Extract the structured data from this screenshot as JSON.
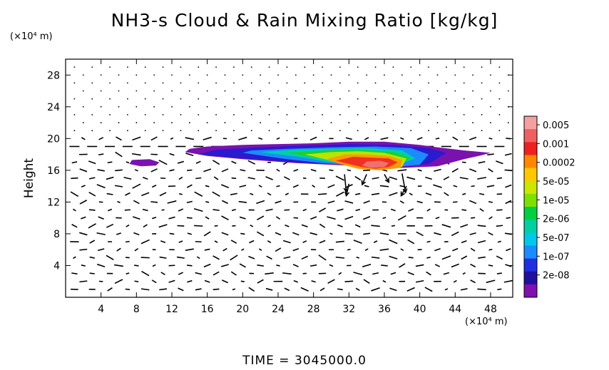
{
  "chart_data": {
    "type": "heatmap",
    "title": "NH3-s Cloud & Rain Mixing Ratio [kg/kg]",
    "ylabel": "Height",
    "xlabel": "",
    "x_unit_label": "(×10⁴ m)",
    "y_unit_label": "(×10⁴ m)",
    "xlim": [
      0,
      50.5
    ],
    "ylim": [
      0,
      30
    ],
    "x_ticks": [
      4,
      8,
      12,
      16,
      20,
      24,
      28,
      32,
      36,
      40,
      44,
      48
    ],
    "y_ticks": [
      4,
      8,
      12,
      16,
      20,
      24,
      28
    ],
    "colorbar": {
      "labels": [
        "0.005",
        "0.001",
        "0.0002",
        "5e-05",
        "1e-05",
        "2e-06",
        "5e-07",
        "1e-07",
        "2e-08"
      ],
      "colors": [
        "#f4a0a0",
        "#f06060",
        "#ee2020",
        "#ff8800",
        "#ffc800",
        "#cce600",
        "#7ee000",
        "#00d040",
        "#00d0a0",
        "#00c8e8",
        "#1a8cff",
        "#2030e0",
        "#2010a0",
        "#8010b0"
      ]
    },
    "regions": [
      {
        "level": "2e-08",
        "x": [
          13.5,
          16,
          20,
          26,
          30,
          34,
          38,
          42,
          45,
          47,
          48,
          45,
          42,
          40,
          36,
          32,
          28,
          24,
          20,
          16,
          14,
          13.5
        ],
        "y": [
          18.3,
          17.8,
          17.4,
          16.9,
          16.7,
          16.5,
          16.3,
          16.5,
          17.4,
          17.9,
          18.2,
          18.5,
          18.9,
          19.2,
          19.6,
          19.6,
          19.4,
          19.3,
          19.2,
          19.0,
          18.7,
          18.3
        ]
      },
      {
        "level": "2e-08",
        "x": [
          7.2,
          8.5,
          10.2,
          10.6,
          9.5,
          7.5,
          7.2
        ],
        "y": [
          16.8,
          16.5,
          16.6,
          17.0,
          17.4,
          17.3,
          16.8
        ]
      },
      {
        "level": "1e-07",
        "x": [
          15,
          20,
          26,
          30,
          34,
          38,
          41,
          43,
          41,
          37,
          32,
          27,
          22,
          17,
          15
        ],
        "y": [
          18.0,
          17.5,
          17.0,
          16.8,
          16.6,
          16.5,
          16.8,
          18.2,
          18.8,
          19.2,
          19.3,
          19.1,
          18.9,
          18.6,
          18.0
        ]
      },
      {
        "level": "5e-07",
        "x": [
          20,
          25,
          29,
          33,
          37,
          40,
          41,
          39,
          35,
          30,
          25,
          21,
          20
        ],
        "y": [
          18.2,
          17.4,
          16.9,
          16.6,
          16.4,
          16.7,
          18.0,
          18.8,
          19.0,
          18.9,
          18.7,
          18.5,
          18.2
        ]
      },
      {
        "level": "2e-06",
        "x": [
          22,
          27,
          30,
          34,
          37,
          39.5,
          38,
          34,
          30,
          26,
          22
        ],
        "y": [
          18.3,
          17.6,
          17.0,
          16.6,
          16.5,
          17.5,
          18.5,
          18.8,
          18.7,
          18.6,
          18.3
        ]
      },
      {
        "level": "1e-05",
        "x": [
          25,
          29,
          32,
          35,
          37.5,
          39,
          37,
          33,
          29,
          25
        ],
        "y": [
          18.2,
          17.5,
          16.8,
          16.4,
          16.5,
          17.6,
          18.3,
          18.6,
          18.5,
          18.2
        ]
      },
      {
        "level": "5e-05",
        "x": [
          27,
          30,
          32,
          35,
          38,
          38.5,
          36,
          33,
          30,
          27
        ],
        "y": [
          18.0,
          17.2,
          16.5,
          16.2,
          16.4,
          17.5,
          18.2,
          18.4,
          18.3,
          18.0
        ]
      },
      {
        "level": "0.0002",
        "x": [
          29.5,
          31,
          33,
          35.5,
          37.8,
          38,
          36.5,
          34,
          31.5,
          29.5
        ],
        "y": [
          17.4,
          16.8,
          16.2,
          16.0,
          16.3,
          17.3,
          17.8,
          18.0,
          18.0,
          17.4
        ]
      },
      {
        "level": "0.001",
        "x": [
          30.5,
          32,
          33.5,
          35,
          36.5,
          37.5,
          36.5,
          34.5,
          32.5,
          30.5
        ],
        "y": [
          17.2,
          16.8,
          16.4,
          16.2,
          16.4,
          17.0,
          17.5,
          17.6,
          17.7,
          17.2
        ]
      },
      {
        "level": "0.005",
        "x": [
          33.5,
          34.5,
          36,
          36.5,
          35.5,
          34,
          33.5
        ],
        "y": [
          16.6,
          16.3,
          16.4,
          16.9,
          17.2,
          17.1,
          16.6
        ]
      }
    ],
    "wind_note_series": "vector field",
    "large_vectors": [
      {
        "x": 31.5,
        "y": 15.5,
        "dx": 0.2,
        "dy": -2.2
      },
      {
        "x": 32,
        "y": 14.3,
        "dx": -0.3,
        "dy": -1.5
      },
      {
        "x": 38,
        "y": 15.6,
        "dx": 0.4,
        "dy": -2.4
      },
      {
        "x": 38.5,
        "y": 14.0,
        "dx": -0.6,
        "dy": -1.2
      },
      {
        "x": 34,
        "y": 15.5,
        "dx": -0.5,
        "dy": -1.3
      },
      {
        "x": 36,
        "y": 15.5,
        "dx": 0.5,
        "dy": -1.0
      }
    ]
  },
  "time_label": "TIME = 3045000.0"
}
